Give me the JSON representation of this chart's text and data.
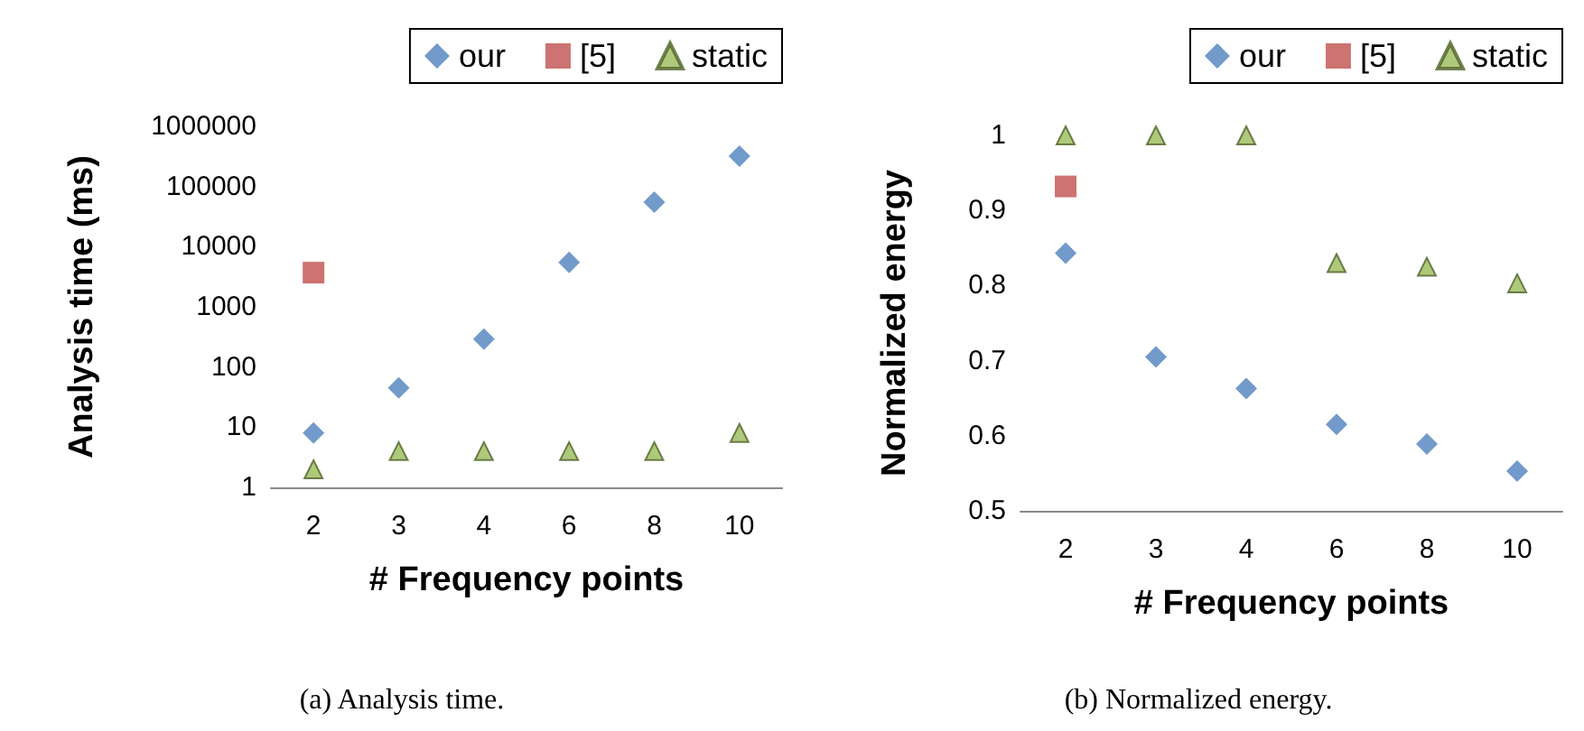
{
  "chart_data": [
    {
      "type": "scatter",
      "title": "(a) Analysis time.",
      "xlabel": "# Frequency points",
      "ylabel": "Analysis time (ms)",
      "categories": [
        "2",
        "3",
        "4",
        "6",
        "8",
        "10"
      ],
      "log": "y",
      "ylim": [
        1,
        1000000
      ],
      "yticks": [
        1,
        10,
        100,
        1000,
        10000,
        100000,
        1000000
      ],
      "grid": false,
      "legend": "top right",
      "series": [
        {
          "name": "our",
          "color": "#4f81bd",
          "marker": "diamond",
          "values": [
            8,
            45,
            290,
            5500,
            55000,
            320000
          ]
        },
        {
          "name": "[5]",
          "color": "#c0504d",
          "marker": "square",
          "values": [
            3700,
            null,
            null,
            null,
            null,
            null
          ]
        },
        {
          "name": "static",
          "color": "#9bbb59",
          "marker": "triangle",
          "values": [
            2,
            4,
            4,
            4,
            4,
            8
          ]
        }
      ]
    },
    {
      "type": "scatter",
      "title": "(b) Normalized energy.",
      "xlabel": "# Frequency points",
      "ylabel": "Normalized energy",
      "categories": [
        "2",
        "3",
        "4",
        "6",
        "8",
        "10"
      ],
      "ylim": [
        0.5,
        1
      ],
      "yticks": [
        0.5,
        0.6,
        0.7,
        0.8,
        0.9,
        1
      ],
      "grid": false,
      "legend": "top right",
      "series": [
        {
          "name": "our",
          "color": "#4f81bd",
          "marker": "diamond",
          "values": [
            0.843,
            0.705,
            0.663,
            0.615,
            0.589,
            0.553
          ]
        },
        {
          "name": "[5]",
          "color": "#c0504d",
          "marker": "square",
          "values": [
            0.932,
            null,
            null,
            null,
            null,
            null
          ]
        },
        {
          "name": "static",
          "color": "#9bbb59",
          "marker": "triangle",
          "values": [
            1,
            1,
            1,
            0.83,
            0.825,
            0.803
          ]
        }
      ]
    }
  ]
}
